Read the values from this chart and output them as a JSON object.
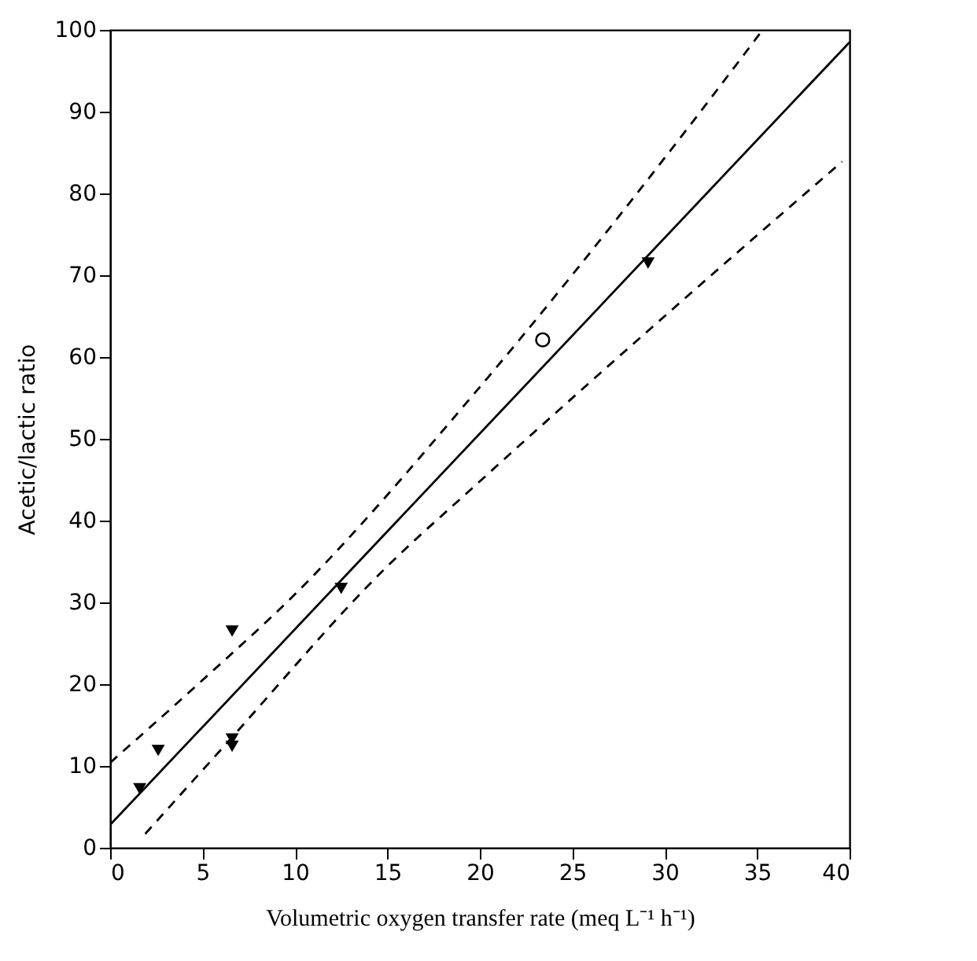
{
  "chart_data": {
    "type": "scatter",
    "xlabel": "Volumetric oxygen transfer rate (meq L⁻¹ h⁻¹)",
    "ylabel": "Acetic/lactic ratio",
    "xlim": [
      0,
      40
    ],
    "xticks": [
      0,
      5,
      10,
      15,
      20,
      25,
      30,
      35,
      40
    ],
    "ylim": [
      0,
      100
    ],
    "yticks": [
      0,
      10,
      20,
      30,
      40,
      50,
      60,
      70,
      80,
      90,
      100
    ],
    "grid": false,
    "series": [
      {
        "marker": "triangle",
        "color": "#000000",
        "x": [
          1.6,
          2.6,
          6.6,
          6.6,
          6.6,
          12.5,
          29.1
        ],
        "values": [
          7.2,
          11.9,
          26.5,
          13.3,
          12.4,
          31.7,
          71.5
        ]
      },
      {
        "marker": "circle",
        "color": "#000000",
        "x": [
          23.4
        ],
        "values": [
          62.1
        ]
      },
      {
        "type": "line",
        "line_style": "solid",
        "color": "#000000",
        "x": [
          0,
          40
        ],
        "values": [
          2.8,
          98.5
        ]
      },
      {
        "type": "line",
        "line_style": "dashed",
        "color": "#000000",
        "x": [
          0,
          5,
          10,
          19.8,
          30.5,
          35.3
        ],
        "values": [
          10.4,
          20.5,
          31,
          55.8,
          85.8,
          100
        ]
      },
      {
        "type": "line",
        "line_style": "dashed",
        "color": "#000000",
        "x": [
          1.9,
          6,
          14.9,
          20,
          30.4,
          39.6
        ],
        "values": [
          1.7,
          12,
          34.2,
          44.8,
          65.8,
          83.9
        ]
      }
    ]
  }
}
